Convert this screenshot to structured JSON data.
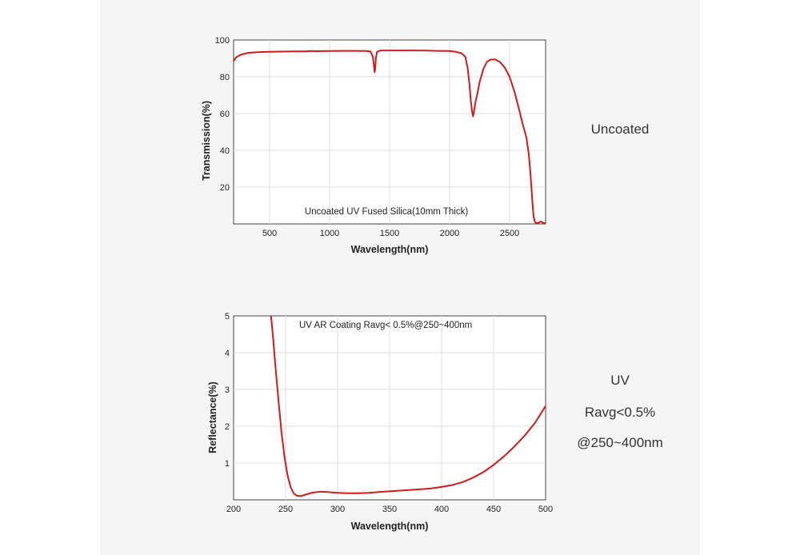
{
  "side_labels": {
    "top": "Uncoated",
    "bottom_line1": "UV",
    "bottom_line2": "Ravg<0.5%",
    "bottom_line3": "@250~400nm"
  },
  "chart_data": [
    {
      "type": "line",
      "title": "",
      "annotation": "Uncoated UV Fused Silica(10mm Thick)",
      "xlabel": "Wavelength(nm)",
      "ylabel": "Transmission(%)",
      "xlim": [
        200,
        2800
      ],
      "ylim": [
        0,
        100
      ],
      "x_ticks": [
        500,
        1000,
        1500,
        2000,
        2500
      ],
      "y_ticks": [
        20,
        40,
        60,
        80,
        100
      ],
      "grid": true,
      "line_color": "#d11a1a",
      "series": [
        {
          "x": [
            200,
            220,
            260,
            320,
            400,
            500,
            600,
            700,
            800,
            850,
            900,
            1000,
            1100,
            1200,
            1300,
            1340,
            1360,
            1370,
            1375,
            1380,
            1385,
            1395,
            1420,
            1500,
            1600,
            1700,
            1800,
            1900,
            2000,
            2050,
            2100,
            2130,
            2150,
            2165,
            2175,
            2185,
            2195,
            2205,
            2215,
            2230,
            2250,
            2280,
            2310,
            2340,
            2380,
            2420,
            2460,
            2500,
            2540,
            2580,
            2610,
            2640,
            2660,
            2675,
            2690,
            2700,
            2710,
            2720,
            2730,
            2740,
            2760,
            2780,
            2800
          ],
          "y": [
            88.5,
            90.5,
            92,
            93,
            93.4,
            93.6,
            93.7,
            93.8,
            93.8,
            94,
            93.9,
            94,
            94.1,
            94.1,
            94,
            93.8,
            91,
            86,
            82.5,
            84.5,
            90,
            93.5,
            94.2,
            94.3,
            94.3,
            94.3,
            94.2,
            94.1,
            94,
            93.6,
            92.8,
            91,
            85,
            76,
            68,
            62,
            58.5,
            62,
            66,
            70.5,
            77,
            84,
            88,
            89.3,
            89.5,
            88,
            85,
            80,
            72,
            62,
            54,
            47,
            38,
            26,
            12,
            4,
            1.2,
            0.5,
            0.4,
            0.6,
            1.3,
            0.6,
            0.2
          ]
        }
      ]
    },
    {
      "type": "line",
      "title": "",
      "annotation": "UV AR Coating Ravg< 0.5%@250~400nm",
      "xlabel": "Wavelength(nm)",
      "ylabel": "Reflectance(%)",
      "xlim": [
        200,
        500
      ],
      "ylim": [
        0,
        5
      ],
      "x_ticks": [
        200,
        250,
        300,
        350,
        400,
        450,
        500
      ],
      "y_ticks": [
        1,
        2,
        3,
        4,
        5
      ],
      "grid": true,
      "line_color": "#d11a1a",
      "series": [
        {
          "x": [
            236,
            238,
            240,
            243,
            246,
            249,
            252,
            255,
            258,
            261,
            264,
            267,
            270,
            275,
            280,
            285,
            290,
            295,
            300,
            310,
            320,
            330,
            340,
            350,
            360,
            370,
            380,
            390,
            400,
            410,
            420,
            430,
            440,
            450,
            460,
            470,
            480,
            490,
            500
          ],
          "y": [
            5.0,
            4.4,
            3.7,
            2.75,
            1.85,
            1.15,
            0.65,
            0.33,
            0.17,
            0.11,
            0.1,
            0.12,
            0.15,
            0.19,
            0.21,
            0.22,
            0.21,
            0.2,
            0.19,
            0.18,
            0.18,
            0.19,
            0.21,
            0.23,
            0.25,
            0.27,
            0.29,
            0.31,
            0.35,
            0.4,
            0.48,
            0.6,
            0.75,
            0.95,
            1.18,
            1.45,
            1.75,
            2.1,
            2.55
          ]
        }
      ]
    }
  ]
}
